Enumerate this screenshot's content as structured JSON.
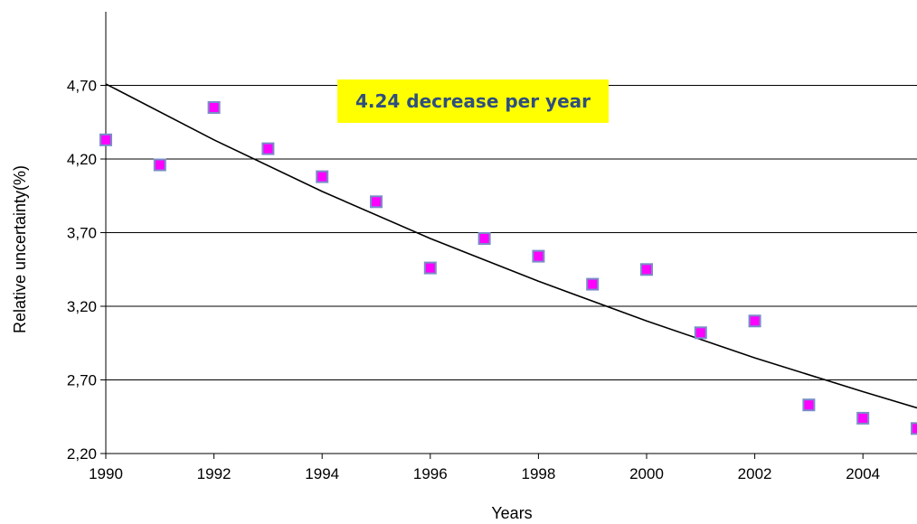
{
  "chart_data": {
    "type": "scatter",
    "title": "",
    "xlabel": "Years",
    "ylabel": "Relative uncertainty(%)",
    "xlim": [
      1990,
      2005
    ],
    "ylim": [
      2.2,
      5.2
    ],
    "grid": true,
    "x_ticks": [
      1990,
      1992,
      1994,
      1996,
      1998,
      2000,
      2002,
      2004
    ],
    "x_tick_labels": [
      "1990",
      "1992",
      "1994",
      "1996",
      "1998",
      "2000",
      "2002",
      "2004"
    ],
    "y_ticks": [
      2.2,
      2.7,
      3.2,
      3.7,
      4.2,
      4.7
    ],
    "y_tick_labels": [
      "2,20",
      "2,70",
      "3,20",
      "3,70",
      "4,20",
      "4,70"
    ],
    "series": [
      {
        "marker": "square",
        "color": "#ff00ff",
        "edge_color": "#7a8cc8",
        "x": [
          1990,
          1991,
          1992,
          1993,
          1994,
          1995,
          1996,
          1997,
          1998,
          1999,
          2000,
          2001,
          2002,
          2003,
          2004,
          2005
        ],
        "y": [
          4.33,
          4.16,
          4.55,
          4.27,
          4.08,
          3.91,
          3.46,
          3.66,
          3.54,
          3.35,
          3.45,
          3.02,
          3.1,
          2.53,
          2.44,
          2.37
        ]
      }
    ],
    "trendline": {
      "type": "exponential",
      "color": "#000000",
      "x": [
        1990,
        1992,
        1994,
        1996,
        1998,
        2000,
        2002,
        2004,
        2005
      ],
      "y": [
        4.71,
        4.33,
        3.98,
        3.66,
        3.37,
        3.1,
        2.85,
        2.62,
        2.51
      ]
    },
    "annotation": {
      "text": "4.24 decrease per year",
      "background": "#ffff00",
      "color": "#2f4f7f"
    }
  }
}
